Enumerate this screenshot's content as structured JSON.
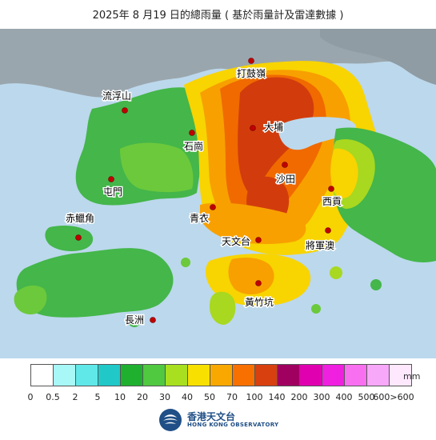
{
  "title": "2025年 8 月19 日的總雨量 ( 基於雨量計及雷達數據 )",
  "places": [
    {
      "id": "ta-kwu-ling",
      "label": "打鼓嶺"
    },
    {
      "id": "lau-fau-shan",
      "label": "流浮山"
    },
    {
      "id": "shek-kong",
      "label": "石崗"
    },
    {
      "id": "tai-po",
      "label": "大埔"
    },
    {
      "id": "sha-tin",
      "label": "沙田"
    },
    {
      "id": "tuen-mun",
      "label": "屯門"
    },
    {
      "id": "sai-kung",
      "label": "西貢"
    },
    {
      "id": "tsing-yi",
      "label": "青衣"
    },
    {
      "id": "chek-lap-kok",
      "label": "赤鱲角"
    },
    {
      "id": "tin-man-toi",
      "label": "天文台"
    },
    {
      "id": "tseung-kwan-o",
      "label": "將軍澳"
    },
    {
      "id": "wong-chuk-hang",
      "label": "黃竹坑"
    },
    {
      "id": "cheung-chau",
      "label": "長洲"
    }
  ],
  "legend": {
    "unit": "mm",
    "colors": [
      "#ffffff",
      "#a8f8f8",
      "#60e8e8",
      "#20c8c8",
      "#20b030",
      "#50c840",
      "#a8e020",
      "#f8e000",
      "#f8a800",
      "#f87000",
      "#d84010",
      "#a00060",
      "#e000b0",
      "#f020e0",
      "#f870f0",
      "#f8a8f8",
      "#fde8fd"
    ],
    "ticks": [
      "0",
      "0.5",
      "2",
      "5",
      "10",
      "20",
      "30",
      "40",
      "50",
      "70",
      "100",
      "140",
      "200",
      "300",
      "400",
      "500",
      "600>600"
    ]
  },
  "logo": {
    "cn": "香港天文台",
    "en": "HONG KONG OBSERVATORY"
  }
}
